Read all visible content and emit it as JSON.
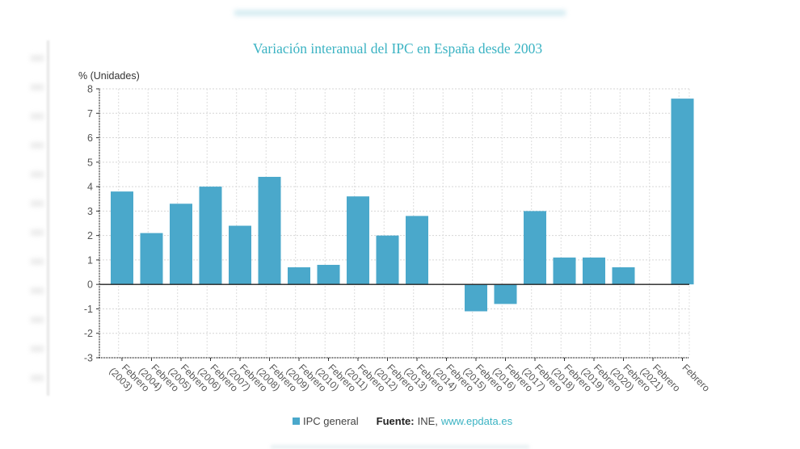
{
  "chart_data": {
    "type": "bar",
    "title": "Variación interanual del IPC en España desde 2003",
    "ylabel": "% (Unidades)",
    "xlabel": "",
    "ylim": [
      -3,
      8
    ],
    "yticks": [
      -3,
      -2,
      -1,
      0,
      1,
      2,
      3,
      4,
      5,
      6,
      7,
      8
    ],
    "grid": true,
    "categories": [
      [
        "Febrero",
        "(2003)"
      ],
      [
        "Febrero",
        "(2004)"
      ],
      [
        "Febrero",
        "(2005)"
      ],
      [
        "Febrero",
        "(2006)"
      ],
      [
        "Febrero",
        "(2007)"
      ],
      [
        "Febrero",
        "(2008)"
      ],
      [
        "Febrero",
        "(2009)"
      ],
      [
        "Febrero",
        "(2010)"
      ],
      [
        "Febrero",
        "(2011)"
      ],
      [
        "Febrero",
        "(2012)"
      ],
      [
        "Febrero",
        "(2013)"
      ],
      [
        "Febrero",
        "(2014)"
      ],
      [
        "Febrero",
        "(2015)"
      ],
      [
        "Febrero",
        "(2016)"
      ],
      [
        "Febrero",
        "(2017)"
      ],
      [
        "Febrero",
        "(2018)"
      ],
      [
        "Febrero",
        "(2019)"
      ],
      [
        "Febrero",
        "(2020)"
      ],
      [
        "Febrero",
        "(2021)"
      ],
      [
        "Febrero",
        ""
      ]
    ],
    "series": [
      {
        "name": "IPC general",
        "color": "#4aa8cb",
        "values": [
          3.8,
          2.1,
          3.3,
          4.0,
          2.4,
          4.4,
          0.7,
          0.8,
          3.6,
          2.0,
          2.8,
          0.0,
          -1.1,
          -0.8,
          3.0,
          1.1,
          1.1,
          0.7,
          0.0,
          7.6
        ]
      }
    ],
    "legend_position": "bottom"
  },
  "legend": {
    "series_label": "IPC general",
    "source_label": "Fuente:",
    "source_text": "INE,",
    "source_link": "www.epdata.es"
  }
}
